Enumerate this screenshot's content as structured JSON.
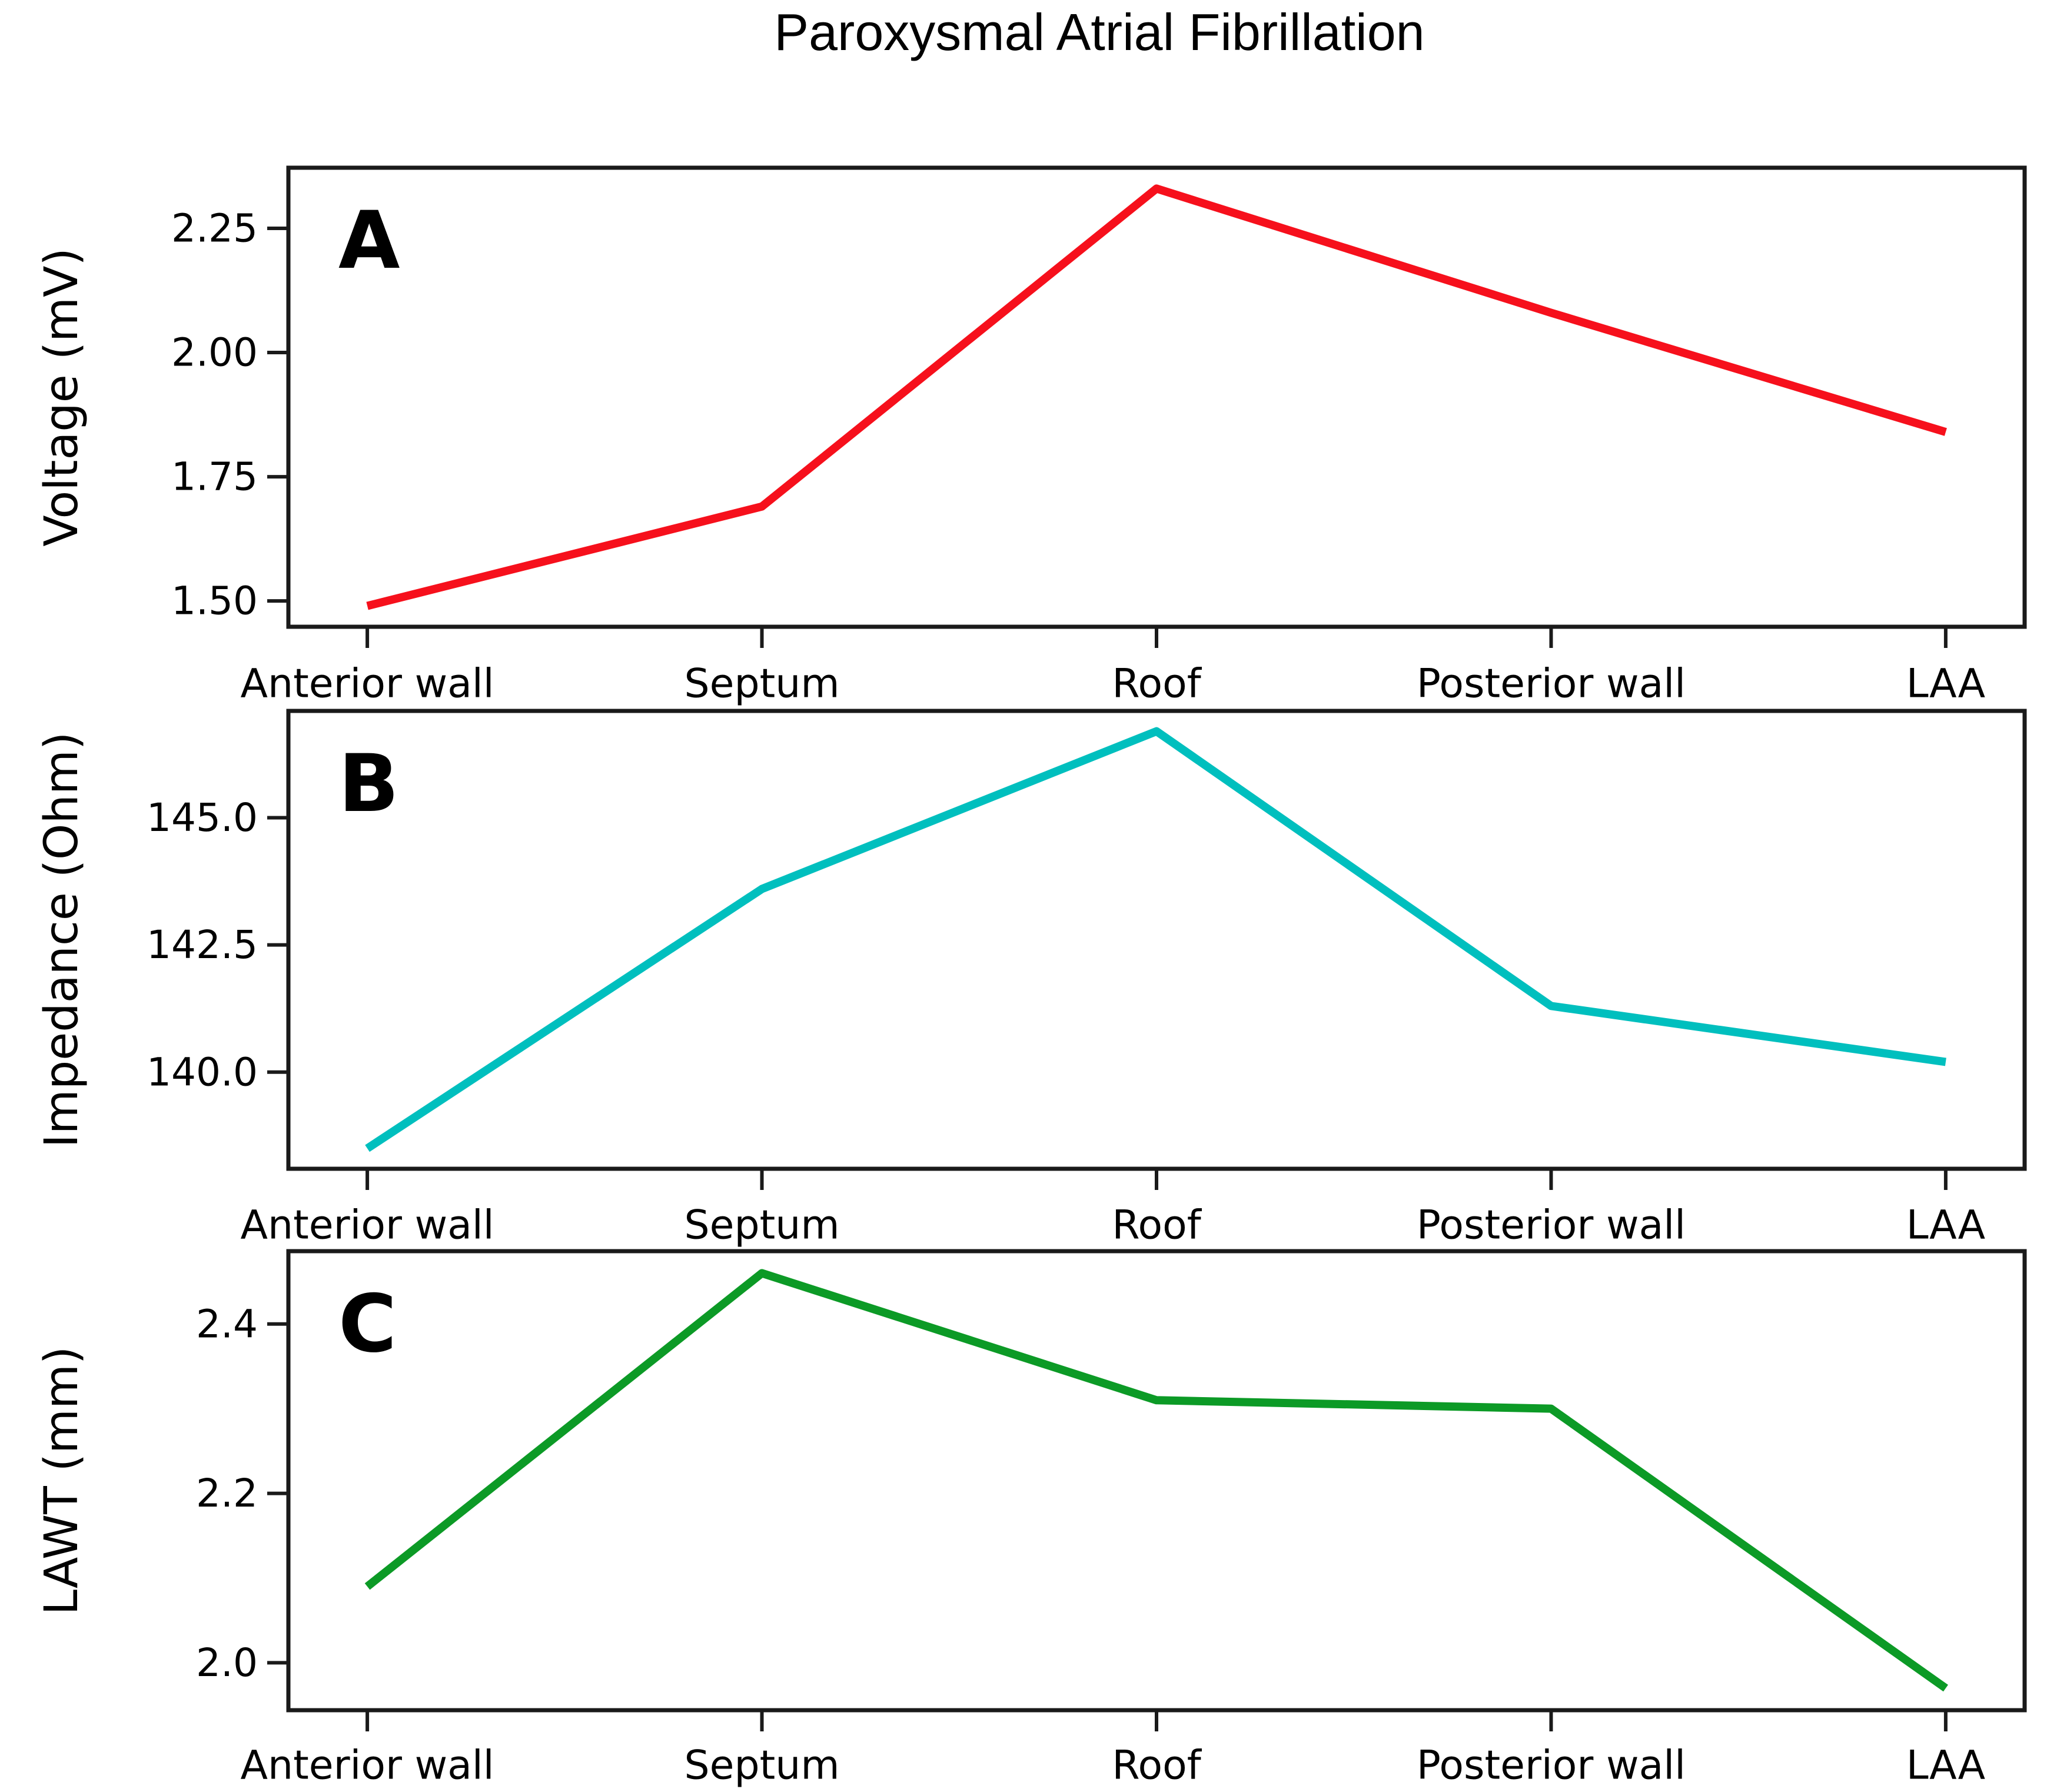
{
  "title": "Paroxysmal Atrial Fibrillation",
  "colors": {
    "background": "#ffffff",
    "spine": "#1a1a1a",
    "text": "#000000",
    "panel_a_line": "#f6101c",
    "panel_b_line": "#00bfbe",
    "panel_c_line": "#0c9a26"
  },
  "chart_data": [
    {
      "type": "line",
      "panel_label": "A",
      "title": "",
      "xlabel": "",
      "ylabel": "Voltage (mV)",
      "line_color": "#f6101c",
      "categories": [
        "Anterior wall",
        "Septum",
        "Roof",
        "Posterior wall",
        "LAA"
      ],
      "values": [
        1.49,
        1.69,
        2.33,
        2.08,
        1.84
      ],
      "yticks": [
        {
          "value": 1.5,
          "label": "1.50"
        },
        {
          "value": 1.75,
          "label": "1.75"
        },
        {
          "value": 2.0,
          "label": "2.00"
        },
        {
          "value": 2.25,
          "label": "2.25"
        }
      ],
      "ylim": [
        1.448,
        2.372
      ],
      "grid": false,
      "markers": false,
      "legend": "none"
    },
    {
      "type": "line",
      "panel_label": "B",
      "title": "",
      "xlabel": "",
      "ylabel": "Impedance (Ohm)",
      "line_color": "#00bfbe",
      "categories": [
        "Anterior wall",
        "Septum",
        "Roof",
        "Posterior wall",
        "LAA"
      ],
      "values": [
        138.5,
        143.6,
        146.7,
        141.3,
        140.2
      ],
      "yticks": [
        {
          "value": 140.0,
          "label": "140.0"
        },
        {
          "value": 142.5,
          "label": "142.5"
        },
        {
          "value": 145.0,
          "label": "145.0"
        }
      ],
      "ylim": [
        138.1,
        147.1
      ],
      "grid": false,
      "markers": false,
      "legend": "none"
    },
    {
      "type": "line",
      "panel_label": "C",
      "title": "",
      "xlabel": "",
      "ylabel": "LAWT (mm)",
      "line_color": "#0c9a26",
      "categories": [
        "Anterior wall",
        "Septum",
        "Roof",
        "Posterior wall",
        "LAA"
      ],
      "values": [
        2.09,
        2.46,
        2.31,
        2.3,
        1.97
      ],
      "yticks": [
        {
          "value": 2.0,
          "label": "2.0"
        },
        {
          "value": 2.2,
          "label": "2.2"
        },
        {
          "value": 2.4,
          "label": "2.4"
        }
      ],
      "ylim": [
        1.944,
        2.486
      ],
      "grid": false,
      "markers": false,
      "legend": "none"
    }
  ]
}
